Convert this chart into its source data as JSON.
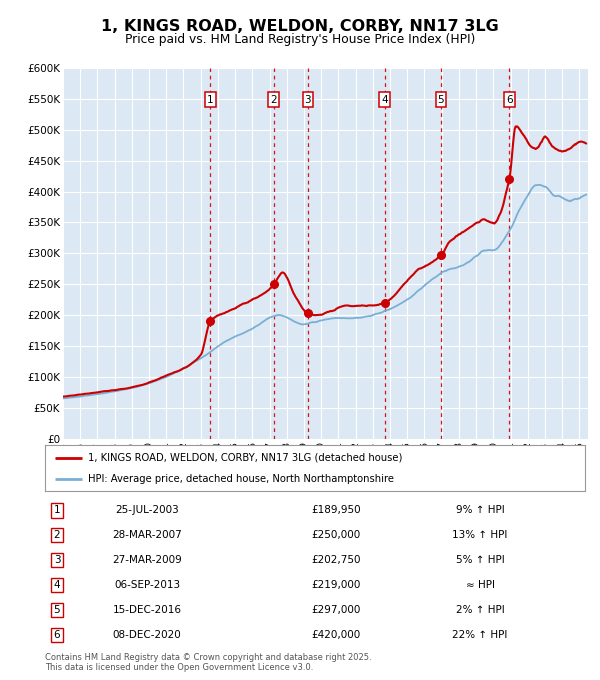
{
  "title": "1, KINGS ROAD, WELDON, CORBY, NN17 3LG",
  "subtitle": "Price paid vs. HM Land Registry's House Price Index (HPI)",
  "background_color": "#ffffff",
  "plot_bg_color": "#dce9f5",
  "grid_color": "#ffffff",
  "ylabel_ticks": [
    "£0",
    "£50K",
    "£100K",
    "£150K",
    "£200K",
    "£250K",
    "£300K",
    "£350K",
    "£400K",
    "£450K",
    "£500K",
    "£550K",
    "£600K"
  ],
  "ytick_vals": [
    0,
    50000,
    100000,
    150000,
    200000,
    250000,
    300000,
    350000,
    400000,
    450000,
    500000,
    550000,
    600000
  ],
  "ylim": [
    0,
    600000
  ],
  "xlim": [
    1995,
    2025.5
  ],
  "sale_markers": [
    {
      "label": "1",
      "date_x": 2003.56,
      "price": 189950
    },
    {
      "label": "2",
      "date_x": 2007.24,
      "price": 250000
    },
    {
      "label": "3",
      "date_x": 2009.23,
      "price": 202750
    },
    {
      "label": "4",
      "date_x": 2013.68,
      "price": 219000
    },
    {
      "label": "5",
      "date_x": 2016.96,
      "price": 297000
    },
    {
      "label": "6",
      "date_x": 2020.93,
      "price": 420000
    }
  ],
  "red_line_color": "#cc0000",
  "blue_line_color": "#7aafd4",
  "marker_color": "#cc0000",
  "vline_color": "#cc0000",
  "legend_red_label": "1, KINGS ROAD, WELDON, CORBY, NN17 3LG (detached house)",
  "legend_blue_label": "HPI: Average price, detached house, North Northamptonshire",
  "table_rows": [
    {
      "num": "1",
      "date": "25-JUL-2003",
      "price": "£189,950",
      "hpi": "9% ↑ HPI"
    },
    {
      "num": "2",
      "date": "28-MAR-2007",
      "price": "£250,000",
      "hpi": "13% ↑ HPI"
    },
    {
      "num": "3",
      "date": "27-MAR-2009",
      "price": "£202,750",
      "hpi": "5% ↑ HPI"
    },
    {
      "num": "4",
      "date": "06-SEP-2013",
      "price": "£219,000",
      "hpi": "≈ HPI"
    },
    {
      "num": "5",
      "date": "15-DEC-2016",
      "price": "£297,000",
      "hpi": "2% ↑ HPI"
    },
    {
      "num": "6",
      "date": "08-DEC-2020",
      "price": "£420,000",
      "hpi": "22% ↑ HPI"
    }
  ],
  "footnote": "Contains HM Land Registry data © Crown copyright and database right 2025.\nThis data is licensed under the Open Government Licence v3.0."
}
